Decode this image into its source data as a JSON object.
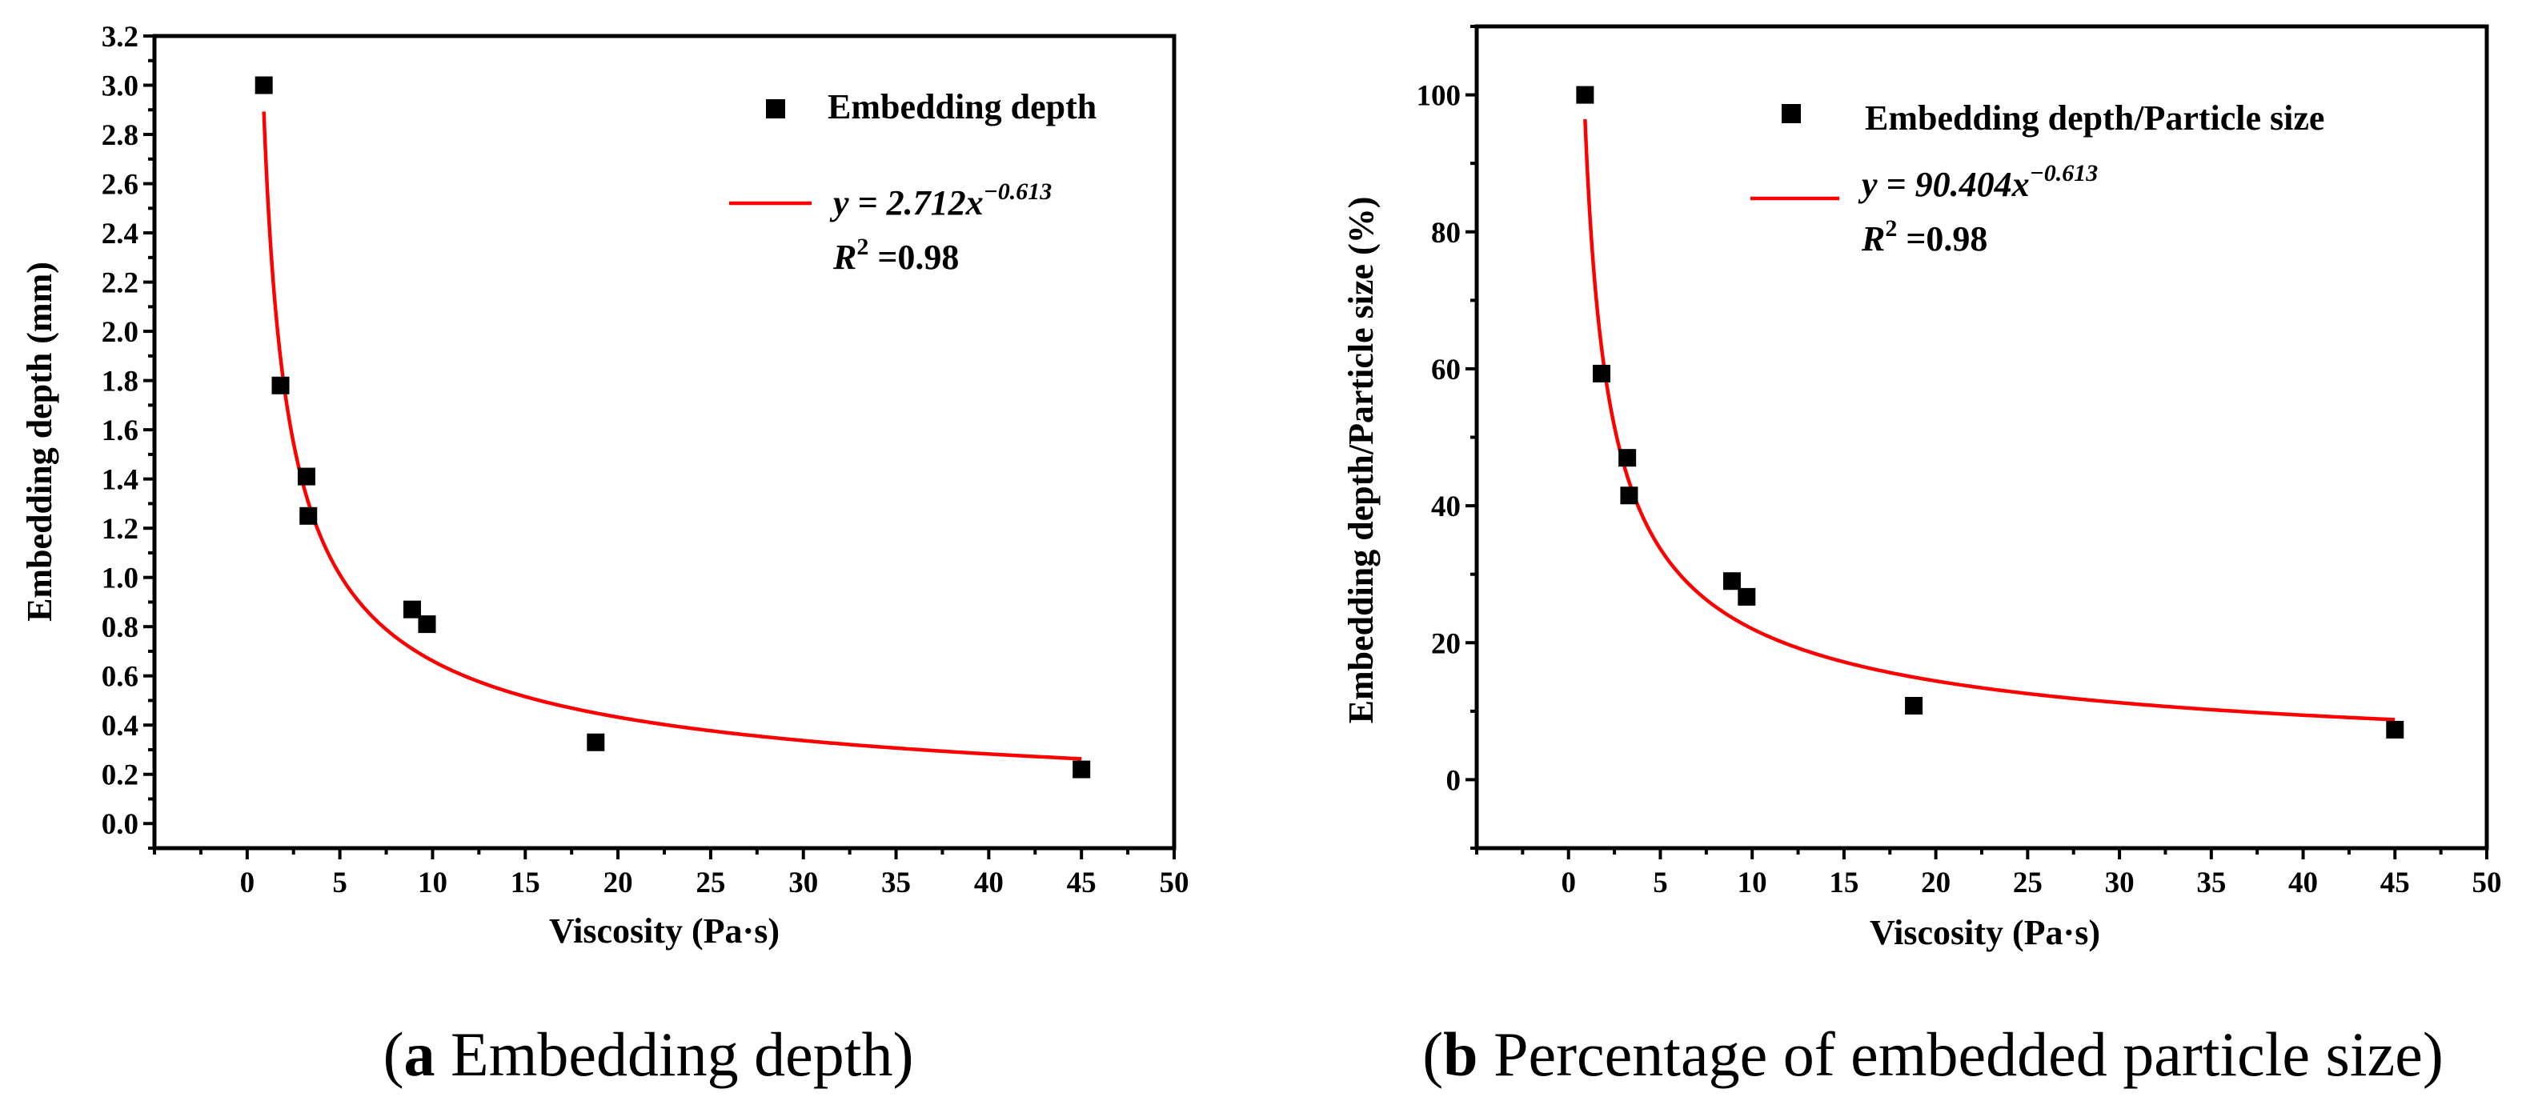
{
  "chart_data": [
    {
      "type": "scatter",
      "panel": "a",
      "xlabel": "Viscosity (Pa·s)",
      "ylabel": "Embedding depth (mm)",
      "xlim": [
        -5,
        50
      ],
      "ylim": [
        -0.1,
        3.2
      ],
      "xticks": [
        0,
        5,
        10,
        15,
        20,
        25,
        30,
        35,
        40,
        45,
        50
      ],
      "yticks": [
        0.0,
        0.2,
        0.4,
        0.6,
        0.8,
        1.0,
        1.2,
        1.4,
        1.6,
        1.8,
        2.0,
        2.2,
        2.4,
        2.6,
        2.8,
        3.0,
        3.2
      ],
      "ytick_decimals": 1,
      "series": [
        {
          "name": "Embedding depth",
          "x": [
            0.9,
            1.8,
            3.2,
            3.3,
            8.9,
            9.7,
            18.8,
            45.0
          ],
          "y": [
            3.0,
            1.78,
            1.41,
            1.25,
            0.87,
            0.81,
            0.33,
            0.22
          ]
        }
      ],
      "fit": {
        "coef": 2.712,
        "exp": -0.613,
        "x_range": [
          0.9,
          45.0
        ],
        "eq_prefix": "y = 2.712x",
        "eq_exponent": "−0.613",
        "r2_prefix": "R",
        "r2_sup": "2",
        "r2_value": " =0.98"
      },
      "legend_label": "Embedding depth",
      "caption_label": "a",
      "caption_text": " Embedding depth"
    },
    {
      "type": "scatter",
      "panel": "b",
      "xlabel": "Viscosity (Pa·s)",
      "ylabel": "Embedding depth/Particle size (%)",
      "xlim": [
        -5,
        50
      ],
      "ylim": [
        -10,
        110
      ],
      "xticks": [
        0,
        5,
        10,
        15,
        20,
        25,
        30,
        35,
        40,
        45,
        50
      ],
      "yticks": [
        0,
        20,
        40,
        60,
        80,
        100
      ],
      "ytick_decimals": 0,
      "series": [
        {
          "name": "Embedding depth/Particle size",
          "x": [
            0.9,
            1.8,
            3.2,
            3.3,
            8.9,
            9.7,
            18.8,
            45.0
          ],
          "y": [
            100,
            59.3,
            47,
            41.5,
            29,
            26.7,
            10.8,
            7.3
          ]
        }
      ],
      "fit": {
        "coef": 90.404,
        "exp": -0.613,
        "x_range": [
          0.9,
          45.0
        ],
        "eq_prefix": "y = 90.404x",
        "eq_exponent": "−0.613",
        "r2_prefix": "R",
        "r2_sup": "2",
        "r2_value": " =0.98"
      },
      "legend_label": "Embedding depth/Particle size",
      "caption_label": "b",
      "caption_text": " Percentage of embedded particle size"
    }
  ],
  "colors": {
    "fit_line": "#ff0000",
    "marker": "#000000",
    "axis": "#000000",
    "text": "#000000"
  }
}
